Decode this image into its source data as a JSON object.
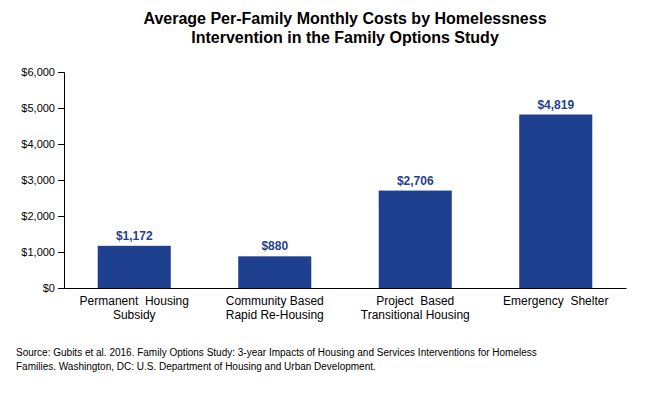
{
  "chart_data": {
    "type": "bar",
    "title": "Average Per-Family Monthly Costs by Homelessness\nIntervention in the Family Options Study",
    "categories": [
      "Permanent  Housing\nSubsidy",
      "Community Based\nRapid Re-Housing",
      "Project  Based\nTransitional Housing",
      "Emergency  Shelter"
    ],
    "values": [
      1172,
      880,
      2706,
      4819
    ],
    "value_labels": [
      "$1,172",
      "$880",
      "$2,706",
      "$4,819"
    ],
    "data_labels": true,
    "color": "#1F3F8F",
    "ylim": [
      0,
      6000
    ],
    "yticks": [
      {
        "value": 0,
        "label": "$0"
      },
      {
        "value": 1000,
        "label": "$1,000"
      },
      {
        "value": 2000,
        "label": "$2,000"
      },
      {
        "value": 3000,
        "label": "$3,000"
      },
      {
        "value": 4000,
        "label": "$4,000"
      },
      {
        "value": 5000,
        "label": "$5,000"
      },
      {
        "value": 6000,
        "label": "$6,000"
      }
    ],
    "grid": false,
    "source": "Source: Gubits et al. 2016. Family Options Study: 3-year Impacts of Housing and Services Interventions for Homeless\nFamilies. Washington, DC: U.S. Department of Housing and Urban Development."
  }
}
